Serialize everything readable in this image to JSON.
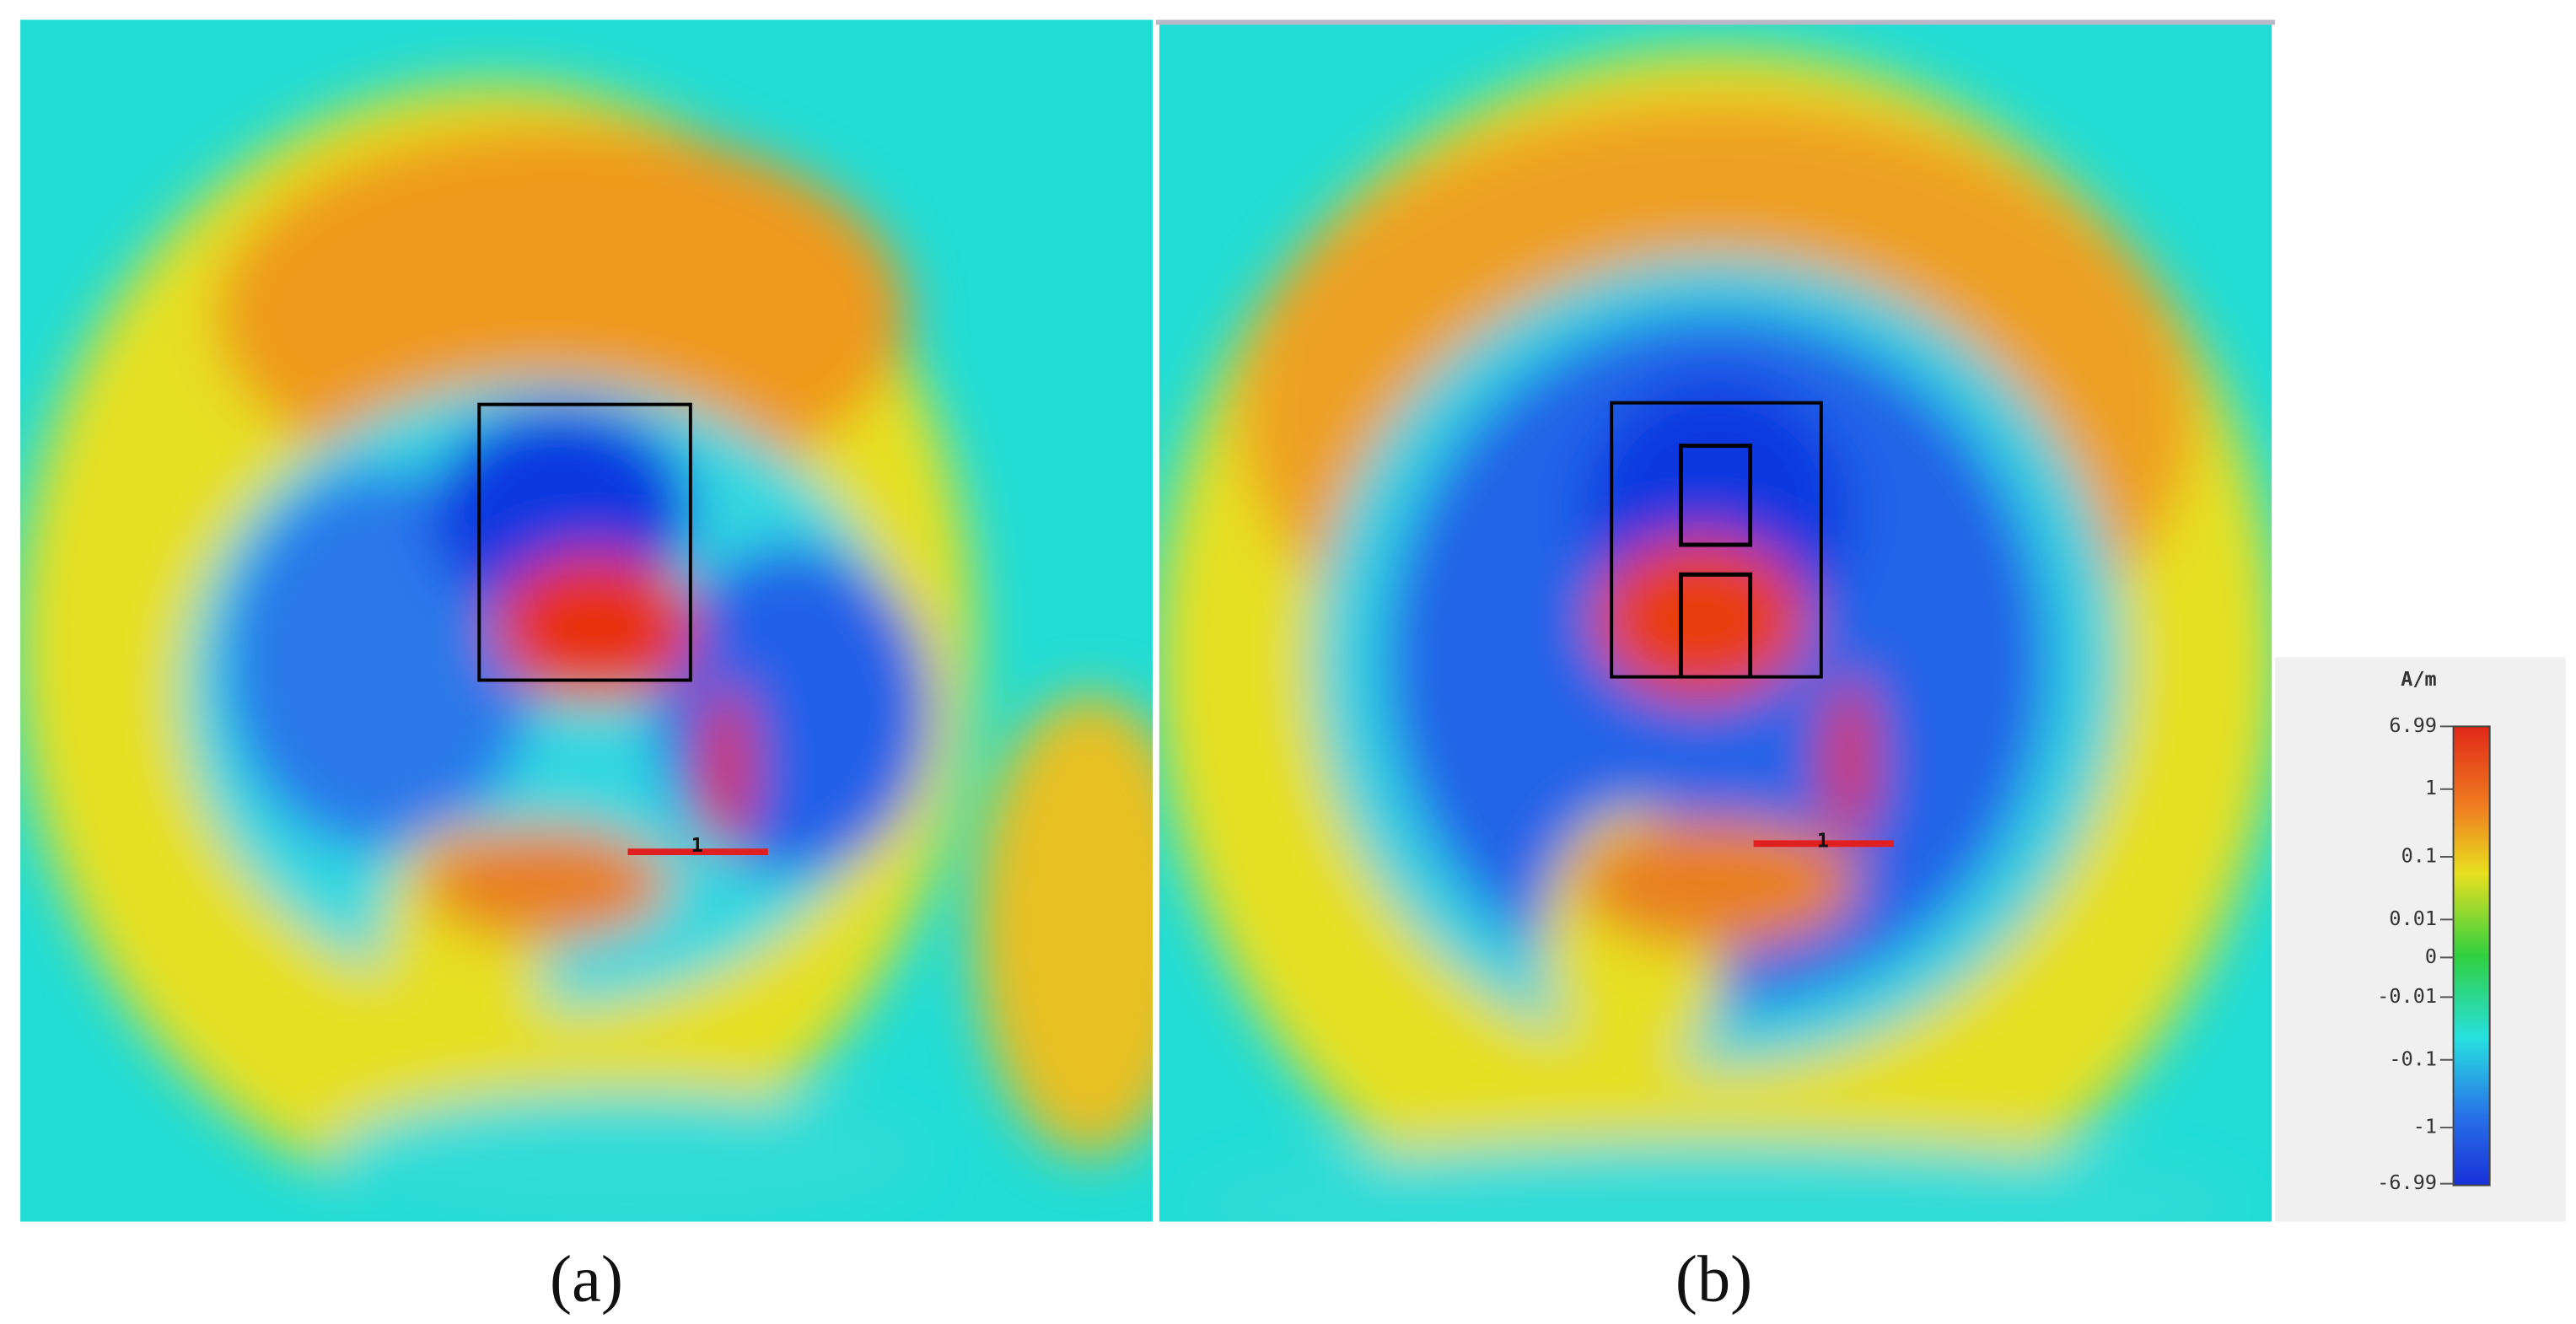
{
  "panels": [
    {
      "label": "(a)",
      "port_label": "1"
    },
    {
      "label": "(b)",
      "port_label": "1"
    }
  ],
  "colorbar": {
    "unit": "A/m",
    "ticks": [
      "6.99",
      "1",
      "0.1",
      "0.01",
      "0",
      "-0.01",
      "-0.1",
      "-1",
      "-6.99"
    ]
  }
}
